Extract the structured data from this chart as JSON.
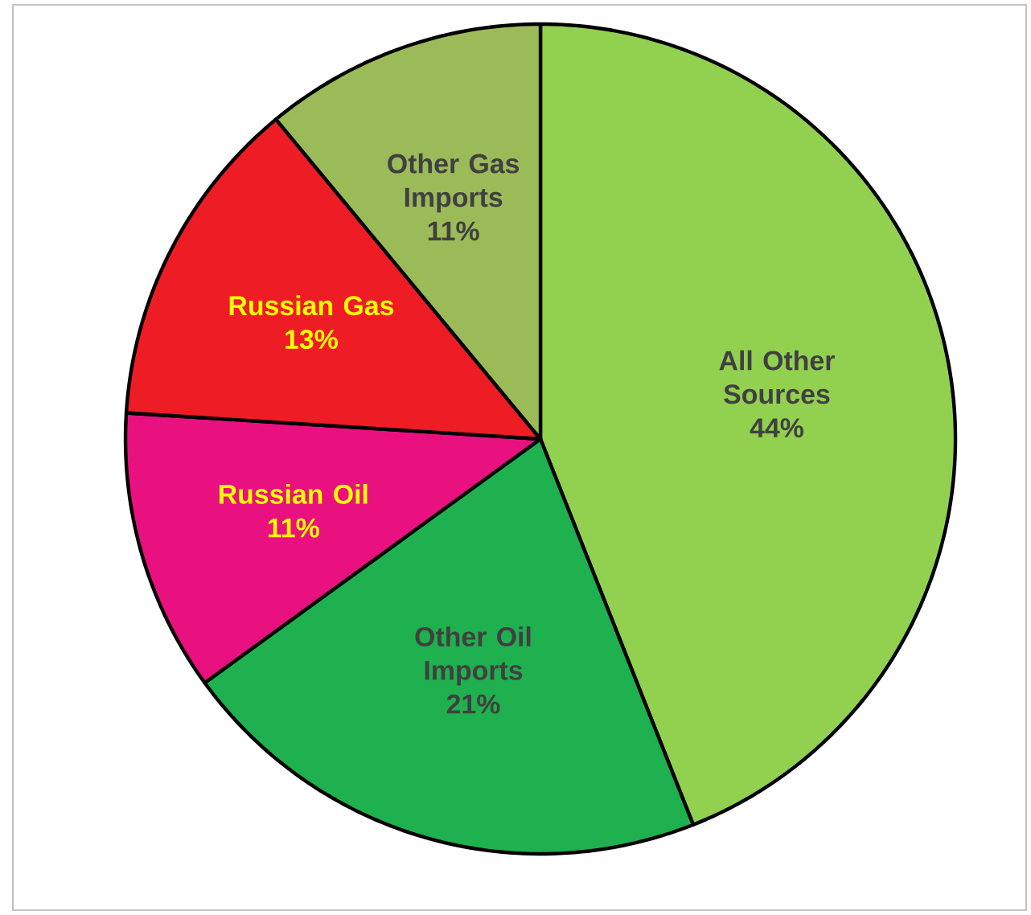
{
  "chart_data": {
    "type": "pie",
    "categories": [
      "All Other Sources",
      "Other Oil Imports",
      "Russian Oil",
      "Russian Gas",
      "Other Gas Imports"
    ],
    "values": [
      44,
      21,
      11,
      13,
      11
    ],
    "value_labels": [
      "44%",
      "21%",
      "11%",
      "13%",
      "11%"
    ],
    "colors": [
      "#92d050",
      "#1fb04f",
      "#e9107f",
      "#ee1c24",
      "#9bbb59"
    ]
  }
}
